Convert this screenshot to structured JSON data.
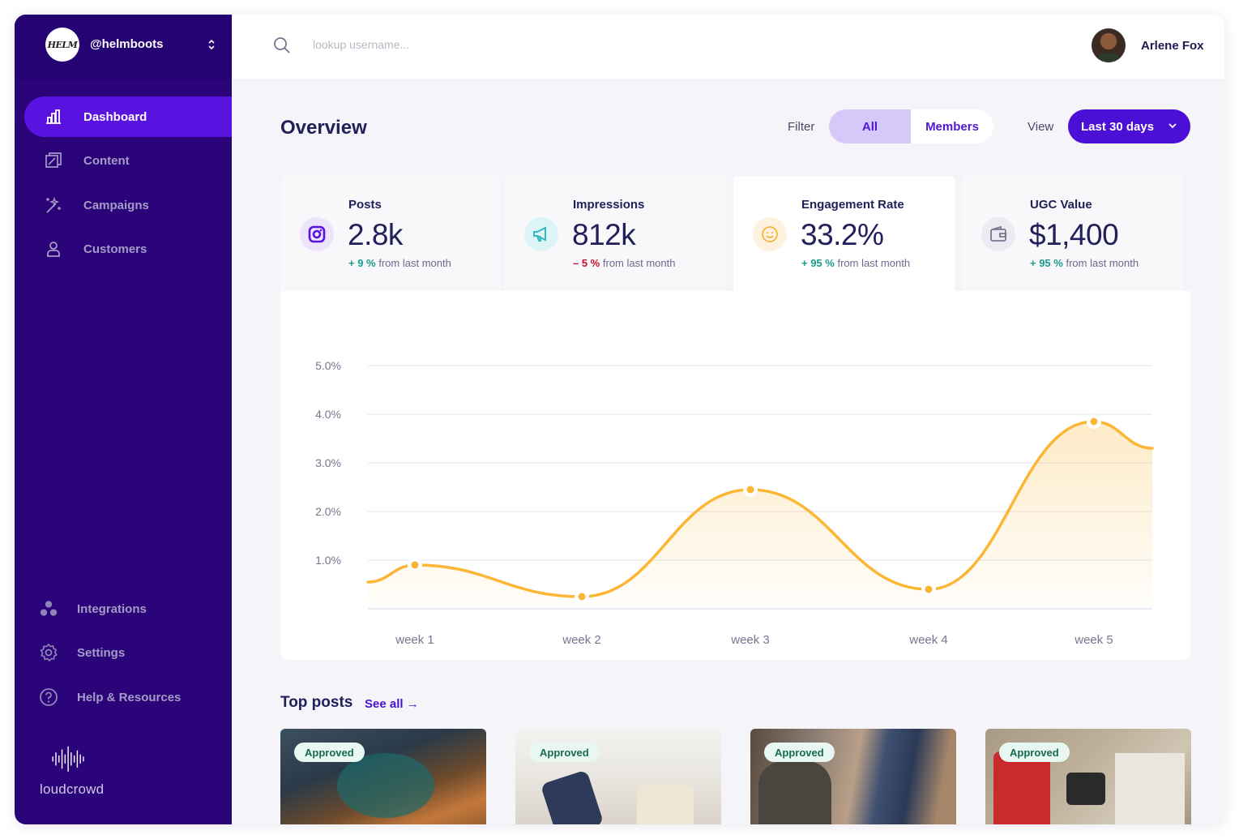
{
  "brand": {
    "logo_text": "HELM",
    "handle": "@helmboots"
  },
  "sidebar": {
    "items": [
      {
        "label": "Dashboard",
        "icon": "bar-chart-icon",
        "active": true
      },
      {
        "label": "Content",
        "icon": "content-icon"
      },
      {
        "label": "Campaigns",
        "icon": "magic-wand-icon"
      },
      {
        "label": "Customers",
        "icon": "user-icon"
      }
    ],
    "lower_items": [
      {
        "label": "Integrations",
        "icon": "integrations-icon"
      },
      {
        "label": "Settings",
        "icon": "gear-icon"
      },
      {
        "label": "Help & Resources",
        "icon": "help-icon"
      }
    ],
    "footer_logo": "loudcrowd"
  },
  "header": {
    "search_placeholder": "lookup username...",
    "user_name": "Arlene Fox"
  },
  "overview": {
    "title": "Overview",
    "filter_label": "Filter",
    "filter_options": [
      "All",
      "Members"
    ],
    "filter_selected": "All",
    "view_label": "View",
    "view_value": "Last 30 days"
  },
  "stats": [
    {
      "title": "Posts",
      "value": "2.8k",
      "delta": "+ 9 %",
      "direction": "up",
      "suffix": "from last month",
      "icon": "instagram-icon",
      "icon_bg": "#ece4fb",
      "icon_color": "#5a12e0"
    },
    {
      "title": "Impressions",
      "value": "812k",
      "delta": "– 5 %",
      "direction": "down",
      "suffix": "from last month",
      "icon": "megaphone-icon",
      "icon_bg": "#dcf4f6",
      "icon_color": "#33b8c4"
    },
    {
      "title": "Engagement Rate",
      "value": "33.2%",
      "delta": "+ 95 %",
      "direction": "up",
      "suffix": "from last month",
      "icon": "smiley-icon",
      "icon_bg": "#fdf1e0",
      "icon_color": "#f5b53b"
    },
    {
      "title": "UGC Value",
      "value": "$1,400",
      "delta": "+ 95 %",
      "direction": "up",
      "suffix": "from last month",
      "icon": "wallet-icon",
      "icon_bg": "#ecebf1",
      "icon_color": "#77758f"
    }
  ],
  "chart_data": {
    "type": "line",
    "categories": [
      "week 1",
      "week 2",
      "week 3",
      "week 4",
      "week 5"
    ],
    "y_ticks": [
      "1.0%",
      "2.0%",
      "3.0%",
      "4.0%",
      "5.0%"
    ],
    "ylim": [
      0,
      5.0
    ],
    "series": [
      {
        "values": [
          0.9,
          0.25,
          2.45,
          0.4,
          3.85
        ]
      }
    ],
    "line_color": "#fbb636",
    "grid": true
  },
  "top_posts": {
    "title": "Top posts",
    "see_all": "See all →",
    "posts": [
      {
        "status": "Approved"
      },
      {
        "status": "Approved"
      },
      {
        "status": "Approved"
      },
      {
        "status": "Approved"
      }
    ]
  }
}
